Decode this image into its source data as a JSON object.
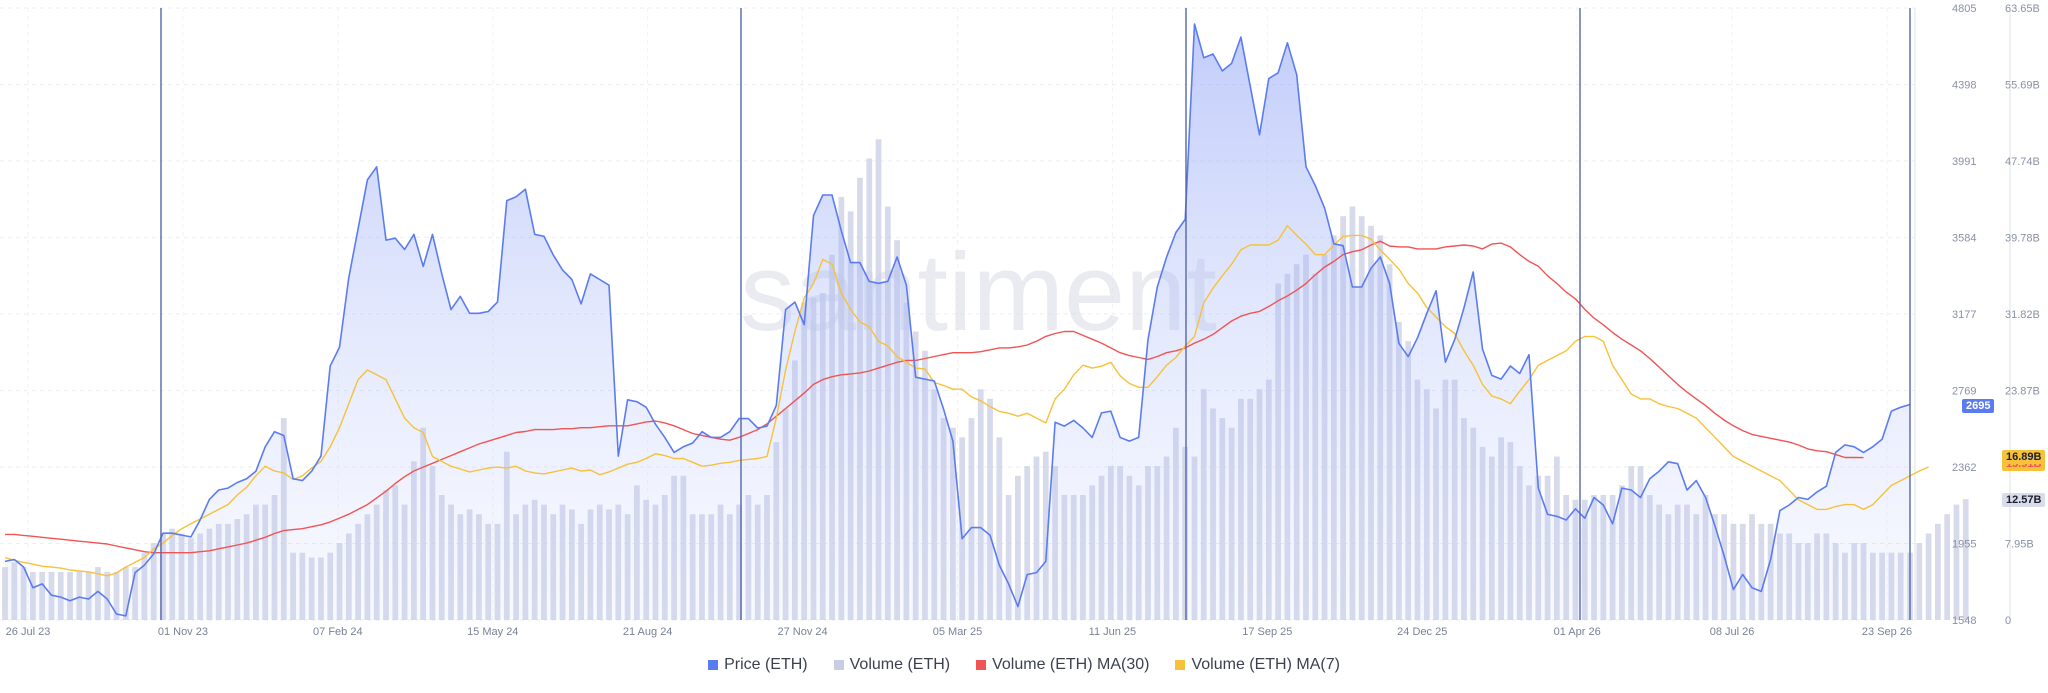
{
  "chart_data": {
    "type": "line",
    "watermark": "santiment",
    "x_labels": [
      "26 Jul 23",
      "01 Nov 23",
      "07 Feb 24",
      "15 May 24",
      "21 Aug 24",
      "27 Nov 24",
      "05 Mar 25",
      "11 Jun 25",
      "17 Sep 25",
      "24 Dec 25",
      "01 Apr 26",
      "08 Jul 26",
      "23 Sep 26"
    ],
    "price_axis": {
      "ticks": [
        4805,
        4398,
        3991,
        3584,
        3177,
        2769,
        2362,
        1955,
        1548
      ],
      "range": [
        1548,
        4805
      ]
    },
    "volume_axis": {
      "ticks": [
        "63.65B",
        "55.69B",
        "47.74B",
        "39.78B",
        "31.82B",
        "23.87B",
        "15.91B",
        "7.95B",
        "0"
      ],
      "range": [
        0,
        63.65
      ]
    },
    "current_values": {
      "price": "2695",
      "ma30": "16.89B",
      "ma7": "15.91B",
      "volume": "12.57B"
    },
    "colors": {
      "price": "#5b7cf0",
      "volume": "#c9cde4",
      "ma30": "#f05454",
      "ma7": "#f7c13a",
      "event_line": "#5566a8"
    },
    "series": [
      {
        "name": "Price (ETH)",
        "color": "#5b7cf0",
        "values": [
          1860,
          1870,
          1830,
          1720,
          1740,
          1680,
          1670,
          1650,
          1670,
          1660,
          1700,
          1660,
          1580,
          1570,
          1800,
          1840,
          1900,
          2010,
          2010,
          2000,
          1990,
          2080,
          2190,
          2240,
          2250,
          2280,
          2300,
          2340,
          2470,
          2550,
          2530,
          2300,
          2290,
          2340,
          2420,
          2900,
          3000,
          3370,
          3630,
          3890,
          3960,
          3570,
          3580,
          3520,
          3600,
          3430,
          3600,
          3390,
          3200,
          3270,
          3180,
          3180,
          3190,
          3240,
          3780,
          3800,
          3840,
          3600,
          3590,
          3490,
          3410,
          3360,
          3230,
          3390,
          3360,
          3330,
          2420,
          2720,
          2710,
          2680,
          2590,
          2520,
          2440,
          2470,
          2490,
          2550,
          2520,
          2520,
          2550,
          2620,
          2620,
          2570,
          2580,
          2690,
          3200,
          3240,
          3120,
          3700,
          3810,
          3810,
          3620,
          3450,
          3450,
          3350,
          3340,
          3350,
          3480,
          3330,
          2840,
          2830,
          2820,
          2670,
          2500,
          1980,
          2040,
          2040,
          2000,
          1840,
          1740,
          1620,
          1790,
          1800,
          1860,
          2600,
          2580,
          2610,
          2570,
          2520,
          2650,
          2660,
          2520,
          2500,
          2520,
          3040,
          3320,
          3480,
          3610,
          3680,
          4720,
          4540,
          4560,
          4470,
          4510,
          4650,
          4390,
          4130,
          4430,
          4460,
          4620,
          4450,
          3960,
          3860,
          3740,
          3550,
          3540,
          3320,
          3320,
          3420,
          3480,
          3340,
          3020,
          2950,
          3050,
          3180,
          3300,
          2920,
          3040,
          3210,
          3400,
          2990,
          2850,
          2830,
          2900,
          2860,
          2960,
          2250,
          2110,
          2100,
          2080,
          2140,
          2090,
          2200,
          2160,
          2060,
          2250,
          2240,
          2200,
          2300,
          2340,
          2390,
          2380,
          2240,
          2290,
          2200,
          2050,
          1890,
          1710,
          1790,
          1720,
          1700,
          1870,
          2130,
          2160,
          2200,
          2190,
          2230,
          2260,
          2440,
          2480,
          2470,
          2440,
          2470,
          2510,
          2660,
          2680,
          2695
        ]
      },
      {
        "name": "Volume (ETH)",
        "color": "#c9cde4",
        "values": [
          5.5,
          6,
          5.5,
          5,
          5,
          5,
          5,
          5,
          5,
          5,
          5.5,
          5,
          5,
          5.5,
          5.5,
          7,
          8,
          9,
          9.5,
          9,
          8.5,
          9,
          9.5,
          10,
          10,
          10.5,
          11,
          12,
          12,
          13,
          21,
          7,
          7,
          6.5,
          6.5,
          7,
          8,
          9,
          10,
          11,
          12,
          13.5,
          14,
          12,
          16.5,
          20,
          16,
          13,
          12,
          11,
          11.5,
          11,
          10,
          10,
          17.5,
          11,
          12,
          12.5,
          12,
          11,
          12,
          11.5,
          10,
          11.5,
          12,
          11.5,
          12,
          11,
          14,
          12.5,
          12,
          13,
          15,
          15,
          11,
          11,
          11,
          12,
          11,
          12,
          13,
          12,
          13,
          18.5,
          22,
          27,
          33,
          33.5,
          34,
          38,
          44,
          42.5,
          46,
          48,
          50,
          43,
          39.5,
          33,
          30,
          28,
          24,
          21,
          20,
          19,
          21,
          24,
          23,
          19,
          13,
          15,
          16,
          17,
          17.5,
          16,
          13,
          13,
          13,
          14,
          15,
          16,
          16,
          15,
          14,
          16,
          16,
          17,
          20,
          18,
          17,
          24,
          22,
          21,
          20,
          23,
          23,
          24,
          25,
          35,
          36,
          37,
          38,
          36,
          38,
          40,
          42,
          43,
          42,
          41,
          40,
          37,
          31,
          29,
          25,
          24,
          22,
          25,
          25,
          21,
          20,
          18,
          17,
          19,
          18.5,
          16,
          14,
          15,
          15,
          17,
          13,
          12.5,
          12.5,
          13,
          13,
          13,
          14,
          16,
          16,
          13,
          12,
          11,
          12,
          12,
          11,
          13,
          11,
          11,
          10,
          10,
          11,
          10,
          10,
          9,
          9,
          8,
          8,
          9,
          9,
          8,
          7,
          8,
          8,
          7,
          7,
          7,
          7,
          7,
          8,
          9,
          10,
          11,
          12,
          12.57
        ]
      },
      {
        "name": "Volume (ETH) MA(30)",
        "color": "#f05454",
        "values": [
          8.9,
          8.9,
          8.8,
          8.7,
          8.6,
          8.5,
          8.4,
          8.3,
          8.2,
          8.1,
          8,
          7.9,
          7.7,
          7.5,
          7.3,
          7.1,
          7,
          7,
          7,
          7,
          7,
          7.1,
          7.2,
          7.4,
          7.6,
          7.8,
          8,
          8.3,
          8.6,
          9,
          9.3,
          9.4,
          9.5,
          9.7,
          9.9,
          10.2,
          10.6,
          11,
          11.5,
          12,
          12.7,
          13.4,
          14.2,
          14.9,
          15.5,
          15.9,
          16.3,
          16.7,
          17.1,
          17.5,
          17.9,
          18.3,
          18.6,
          18.9,
          19.2,
          19.5,
          19.6,
          19.8,
          19.8,
          19.8,
          19.9,
          19.9,
          20,
          20,
          20.1,
          20.2,
          20.2,
          20.2,
          20.4,
          20.6,
          20.7,
          20.5,
          20.2,
          19.8,
          19.4,
          19.2,
          19,
          18.8,
          18.7,
          19,
          19.4,
          19.8,
          20.4,
          21.2,
          22,
          22.8,
          23.6,
          24.5,
          25,
          25.3,
          25.5,
          25.6,
          25.7,
          25.9,
          26.2,
          26.5,
          26.8,
          27,
          27,
          27.2,
          27.4,
          27.6,
          27.8,
          27.8,
          27.8,
          27.9,
          28.1,
          28.3,
          28.3,
          28.4,
          28.6,
          29,
          29.5,
          29.8,
          30,
          30,
          29.6,
          29.2,
          28.8,
          28.3,
          27.8,
          27.5,
          27.3,
          27.1,
          27.4,
          27.8,
          28,
          28.3,
          28.8,
          29.2,
          29.7,
          30.4,
          31.1,
          31.6,
          31.9,
          32.1,
          32.6,
          33.2,
          33.7,
          34.3,
          35,
          35.9,
          36.7,
          37.3,
          38,
          38.3,
          38.5,
          39,
          39.4,
          38.9,
          38.8,
          38.8,
          38.6,
          38.6,
          38.6,
          38.8,
          38.9,
          39,
          38.9,
          38.6,
          39.1,
          39.2,
          38.8,
          38,
          37.3,
          36.8,
          35.8,
          35,
          34.1,
          33.4,
          32.3,
          31.4,
          30.7,
          29.9,
          29.2,
          28.6,
          28,
          27.2,
          26.3,
          25.4,
          24.5,
          23.7,
          23,
          22.3,
          21.5,
          20.8,
          20.2,
          19.7,
          19.3,
          19.1,
          18.9,
          18.7,
          18.5,
          18.2,
          17.8,
          17.6,
          17.5,
          17.2,
          16.9,
          16.9,
          16.89
        ]
      },
      {
        "name": "Volume (ETH) MA(7)",
        "color": "#f7c13a",
        "values": [
          6.5,
          6.2,
          6,
          5.8,
          5.6,
          5.5,
          5.4,
          5.2,
          5.1,
          5,
          4.8,
          4.6,
          4.9,
          5.5,
          6,
          6.5,
          7.4,
          8,
          8.8,
          9.5,
          10,
          10.5,
          11,
          11.5,
          12,
          13,
          13.8,
          15,
          16,
          15.5,
          15.3,
          14.6,
          15,
          15.8,
          16.5,
          18,
          20,
          22.5,
          25,
          26,
          25.5,
          25,
          23,
          21,
          20,
          19.5,
          17,
          16.5,
          16,
          15.7,
          15.4,
          15.6,
          15.8,
          15.9,
          15.8,
          16,
          15.5,
          15.3,
          15.2,
          15.4,
          15.6,
          15.8,
          15.5,
          15.6,
          15.1,
          15.4,
          15.8,
          16.2,
          16.4,
          16.8,
          17.3,
          17.1,
          16.8,
          16.8,
          16.4,
          16,
          16.1,
          16.3,
          16.4,
          16.6,
          16.7,
          16.8,
          17,
          21,
          26,
          30,
          33.5,
          35,
          37.5,
          37,
          34,
          32.3,
          31,
          30.5,
          29,
          28.5,
          27.4,
          26.8,
          26.2,
          26.1,
          24.7,
          24.4,
          24,
          24,
          23.2,
          22.8,
          22.2,
          21.7,
          21.5,
          21.2,
          21.5,
          21,
          20.5,
          23,
          24,
          25.5,
          26.5,
          26.2,
          26.4,
          26.8,
          25.4,
          24.6,
          24.2,
          24.2,
          25.3,
          26.5,
          27.3,
          28.5,
          29.5,
          33,
          34.5,
          35.8,
          37,
          38.5,
          39,
          39,
          39,
          39.5,
          41,
          40,
          39.1,
          38,
          38,
          39,
          39.9,
          40,
          40,
          39.6,
          38.5,
          37.5,
          36.5,
          35,
          34,
          32.5,
          31.5,
          30.5,
          29.8,
          28,
          26.5,
          24.5,
          23.3,
          23,
          22.5,
          23.8,
          25,
          26.5,
          27,
          27.5,
          28,
          29,
          29.5,
          29.5,
          29,
          26.5,
          25,
          23.5,
          23,
          23,
          22.5,
          22.2,
          22,
          21.5,
          21,
          20,
          19,
          18,
          17,
          16.5,
          16,
          15.5,
          15,
          14.5,
          13.5,
          12.5,
          12,
          11.5,
          11.5,
          11.8,
          12,
          12,
          11.5,
          12,
          13,
          14,
          14.5,
          15,
          15.5,
          15.91
        ]
      }
    ],
    "event_marker_dates": [
      "01 Nov 23",
      "27 Nov 24",
      "11 Jun 25",
      "01 Apr 26",
      "23 Sep 26"
    ],
    "legend": [
      "Price (ETH)",
      "Volume (ETH)",
      "Volume (ETH) MA(30)",
      "Volume (ETH) MA(7)"
    ]
  }
}
